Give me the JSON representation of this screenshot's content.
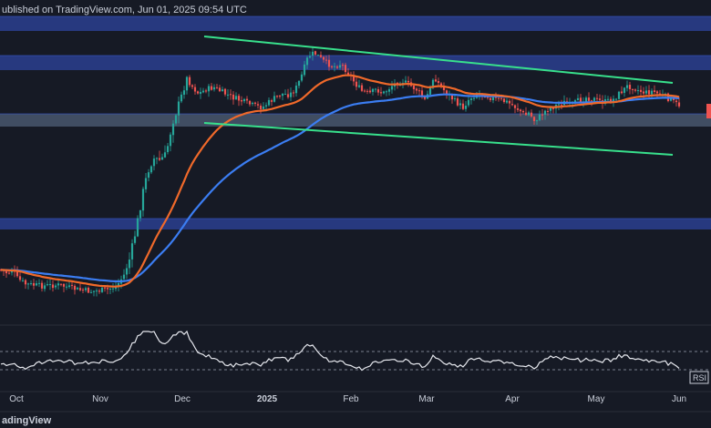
{
  "header": {
    "publish_text": "ublished on TradingView.com, Jun 01, 2025 09:54 UTC"
  },
  "footer": {
    "brand_text": "adingView"
  },
  "rsi_badge": {
    "label": "RSI"
  },
  "colors": {
    "background": "#161a25",
    "zone_fill": "#2a3f8f",
    "zone_border": "#3656c7",
    "support_zone_fill": "#4b5a72",
    "trendline": "#38e08c",
    "ema_orange": "#f0692a",
    "ma_blue": "#3b7df2",
    "candle_up": "#26a69a",
    "candle_down": "#ef5350",
    "rsi_line": "#e6e8ee",
    "price_marker": "#ef5350"
  },
  "chart_data": [
    {
      "type": "candlestick",
      "title": "",
      "xlabel": "",
      "ylabel": "",
      "x_ticks": [
        "Oct",
        "Nov",
        "Dec",
        "2025",
        "Feb",
        "Mar",
        "Apr",
        "May",
        "Jun"
      ],
      "horizontal_zones": [
        "resistance-top",
        "resistance-upper",
        "support-mid",
        "support-lower"
      ],
      "trendlines": [
        "descending-upper",
        "descending-lower"
      ],
      "moving_averages": [
        "orange",
        "blue"
      ],
      "grid": false,
      "legend": "none"
    },
    {
      "type": "line",
      "title": "",
      "series": [
        {
          "name": "RSI",
          "values": []
        }
      ],
      "reference_lines": [
        70,
        30
      ],
      "grid": false
    }
  ]
}
